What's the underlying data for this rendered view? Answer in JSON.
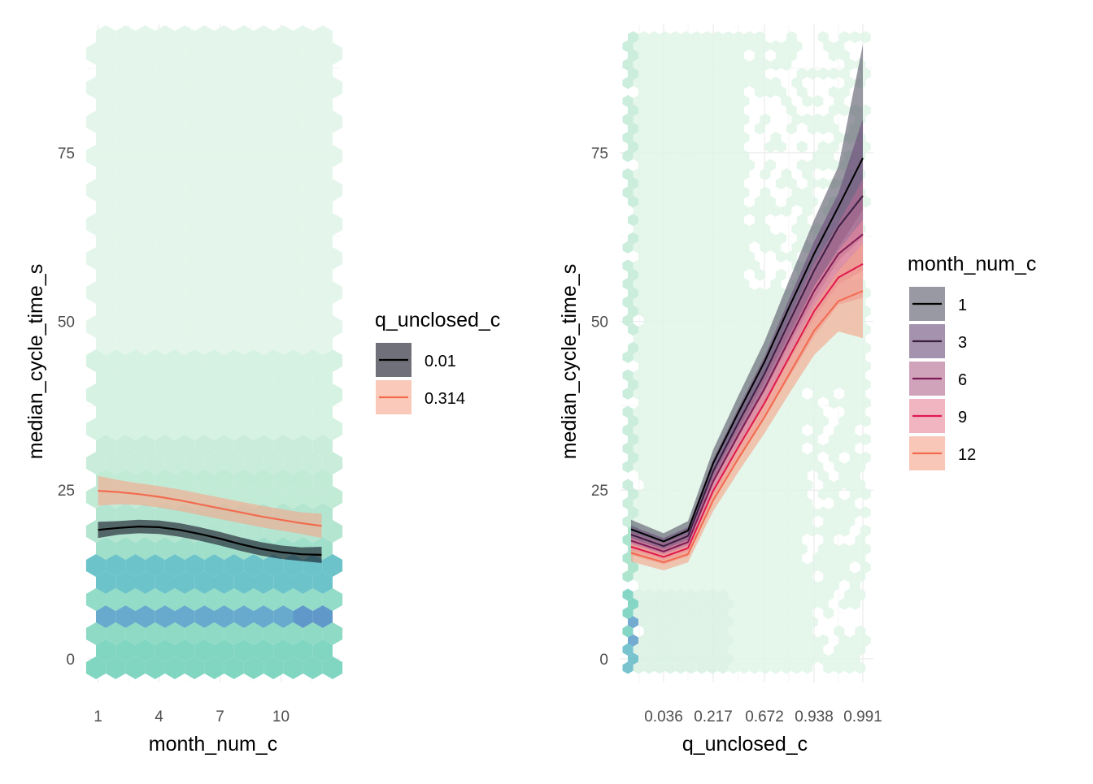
{
  "chart_data": [
    {
      "type": "line",
      "overlay": "hexbin",
      "xlabel": "month_num_c",
      "ylabel": "median_cycle_time_s",
      "x_ticks": [
        "1",
        "4",
        "7",
        "10"
      ],
      "x_tick_values": [
        1,
        4,
        7,
        10
      ],
      "xlim": [
        0.5,
        12.9
      ],
      "y_ticks": [
        "0",
        "25",
        "50",
        "75"
      ],
      "y_tick_values": [
        0,
        25,
        50,
        75
      ],
      "ylim": [
        -3.5,
        94
      ],
      "grid": true,
      "legend": {
        "title": "q_unclosed_c",
        "placement": "right"
      },
      "hexbin_note_colors": [
        "#e1f4e9",
        "#9fdfc6",
        "#71cfbc",
        "#5fb8c6",
        "#5b9ec9"
      ],
      "x": [
        1,
        2,
        3,
        4,
        5,
        6,
        7,
        8,
        9,
        10,
        11,
        12
      ],
      "series": [
        {
          "name": "0.01",
          "color": "#0d0887",
          "line_color": "#000000",
          "band_color": "#111122",
          "values": [
            19.1,
            19.4,
            19.6,
            19.5,
            19.1,
            18.5,
            17.8,
            17.0,
            16.3,
            15.8,
            15.5,
            15.4
          ],
          "lower": [
            17.9,
            18.4,
            18.6,
            18.5,
            18.1,
            17.5,
            16.8,
            16.0,
            15.3,
            14.8,
            14.5,
            14.2
          ],
          "upper": [
            20.3,
            20.4,
            20.6,
            20.5,
            20.1,
            19.5,
            18.8,
            18.0,
            17.3,
            16.8,
            16.5,
            16.6
          ]
        },
        {
          "name": "0.314",
          "line_color": "#f26b4f",
          "band_color": "#f6a58a",
          "values": [
            24.9,
            24.7,
            24.4,
            24.0,
            23.5,
            22.9,
            22.3,
            21.7,
            21.1,
            20.6,
            20.1,
            19.7
          ],
          "lower": [
            22.7,
            22.9,
            22.8,
            22.4,
            21.9,
            21.3,
            20.7,
            20.1,
            19.5,
            19.0,
            18.5,
            17.9
          ],
          "upper": [
            27.1,
            26.5,
            26.0,
            25.6,
            25.1,
            24.5,
            23.9,
            23.3,
            22.7,
            22.2,
            21.7,
            21.5
          ]
        }
      ]
    },
    {
      "type": "line",
      "overlay": "hexbin",
      "xlabel": "q_unclosed_c",
      "ylabel": "median_cycle_time_s",
      "x_ticks": [
        "0.036",
        "0.217",
        "0.672",
        "0.938",
        "0.991"
      ],
      "x_tick_values": [
        0.036,
        0.217,
        0.672,
        0.938,
        0.991
      ],
      "x_scale": "quantile",
      "y_ticks": [
        "0",
        "25",
        "50",
        "75"
      ],
      "y_tick_values": [
        0,
        25,
        50,
        75
      ],
      "ylim": [
        -3.5,
        94
      ],
      "grid": true,
      "legend": {
        "title": "month_num_c",
        "placement": "right"
      },
      "x": [
        0.0,
        0.036,
        0.1,
        0.217,
        0.4,
        0.672,
        0.8,
        0.938,
        0.97,
        0.991
      ],
      "series": [
        {
          "name": "1",
          "line_color": "#000000",
          "band_color": "#5a5a6a",
          "values": [
            19.2,
            17.4,
            19.0,
            29.0,
            36.5,
            44.0,
            52.0,
            60.0,
            67.0,
            74.2
          ],
          "lower": [
            17.8,
            16.2,
            17.6,
            27.0,
            34.0,
            41.0,
            48.0,
            55.0,
            61.0,
            66.5
          ],
          "upper": [
            20.6,
            18.6,
            20.4,
            31.0,
            39.0,
            47.0,
            56.0,
            65.0,
            73.0,
            91.0
          ]
        },
        {
          "name": "3",
          "line_color": "#3b1f44",
          "band_color": "#6e4f7c",
          "values": [
            18.4,
            16.7,
            18.2,
            27.8,
            35.0,
            42.2,
            49.8,
            57.5,
            64.0,
            68.6
          ],
          "lower": [
            17.1,
            15.5,
            16.9,
            26.0,
            32.8,
            39.6,
            46.4,
            53.2,
            59.0,
            62.5
          ],
          "upper": [
            19.7,
            17.9,
            19.5,
            29.6,
            37.2,
            44.8,
            53.2,
            61.8,
            69.0,
            80.0
          ]
        },
        {
          "name": "6",
          "line_color": "#7d1c55",
          "band_color": "#b46a92",
          "values": [
            17.5,
            15.9,
            17.3,
            26.3,
            33.2,
            40.0,
            47.2,
            54.5,
            60.0,
            62.9
          ],
          "lower": [
            16.2,
            14.7,
            16.0,
            24.6,
            31.1,
            37.5,
            44.0,
            50.5,
            55.5,
            57.5
          ],
          "upper": [
            18.8,
            17.1,
            18.6,
            28.0,
            35.3,
            42.5,
            50.4,
            58.5,
            64.5,
            71.0
          ]
        },
        {
          "name": "9",
          "line_color": "#e0194f",
          "band_color": "#e8889c",
          "values": [
            16.6,
            15.1,
            16.4,
            24.9,
            31.4,
            37.9,
            44.6,
            51.5,
            56.5,
            58.5
          ],
          "lower": [
            15.4,
            14.0,
            15.2,
            23.3,
            29.4,
            35.5,
            41.6,
            47.8,
            52.5,
            53.5
          ],
          "upper": [
            17.8,
            16.2,
            17.6,
            26.5,
            33.4,
            40.3,
            47.6,
            55.2,
            60.5,
            65.0
          ]
        },
        {
          "name": "12",
          "line_color": "#f26b4f",
          "band_color": "#f6a58a",
          "values": [
            15.7,
            14.3,
            15.5,
            23.5,
            29.7,
            35.8,
            42.1,
            48.6,
            53.0,
            54.5
          ],
          "lower": [
            14.4,
            13.1,
            14.3,
            21.9,
            27.7,
            33.4,
            39.2,
            45.0,
            48.5,
            47.5
          ],
          "upper": [
            17.0,
            15.5,
            16.7,
            25.1,
            31.7,
            38.2,
            45.0,
            52.2,
            57.5,
            61.5
          ]
        }
      ]
    }
  ]
}
